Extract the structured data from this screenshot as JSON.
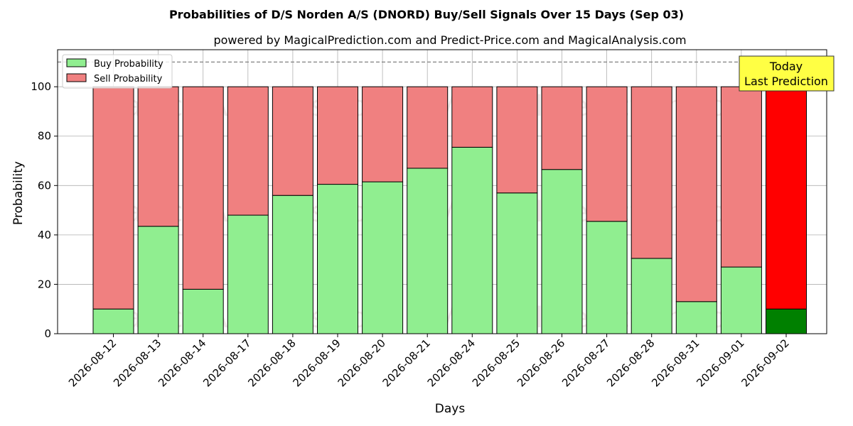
{
  "chart_data": {
    "type": "bar",
    "stacked": true,
    "title": "Probabilities of D/S Norden A/S (DNORD) Buy/Sell Signals Over 15 Days (Sep 03)",
    "subtitle": "powered by MagicalPrediction.com and Predict-Price.com and MagicalAnalysis.com",
    "xlabel": "Days",
    "ylabel": "Probability",
    "ylim": [
      0,
      115
    ],
    "yticks": [
      0,
      20,
      40,
      60,
      80,
      100
    ],
    "grid": true,
    "reference_line": 110,
    "legend_position": "top-left",
    "categories": [
      "2026-08-12",
      "2026-08-13",
      "2026-08-14",
      "2026-08-17",
      "2026-08-18",
      "2026-08-19",
      "2026-08-20",
      "2026-08-21",
      "2026-08-24",
      "2026-08-25",
      "2026-08-26",
      "2026-08-27",
      "2026-08-28",
      "2026-08-31",
      "2026-09-01",
      "2026-09-02"
    ],
    "series": [
      {
        "name": "Buy Probability",
        "color": "#90EE90",
        "values": [
          10,
          43.5,
          18,
          48,
          56,
          60.5,
          61.5,
          67,
          75.5,
          57,
          66.5,
          45.5,
          30.5,
          13,
          27,
          10
        ]
      },
      {
        "name": "Sell Probability",
        "color": "#F08080",
        "values": [
          90,
          56.5,
          82,
          52,
          44,
          39.5,
          38.5,
          33,
          24.5,
          43,
          33.5,
          54.5,
          69.5,
          87,
          73,
          90
        ]
      }
    ],
    "highlight": {
      "index": 15,
      "buy_color": "#008000",
      "sell_color": "#FF0000"
    },
    "annotation": {
      "line1": "Today",
      "line2": "Last Prediction"
    },
    "watermarks": [
      "MagicalAnalysis.com",
      "MagicalPrediction.com"
    ]
  }
}
